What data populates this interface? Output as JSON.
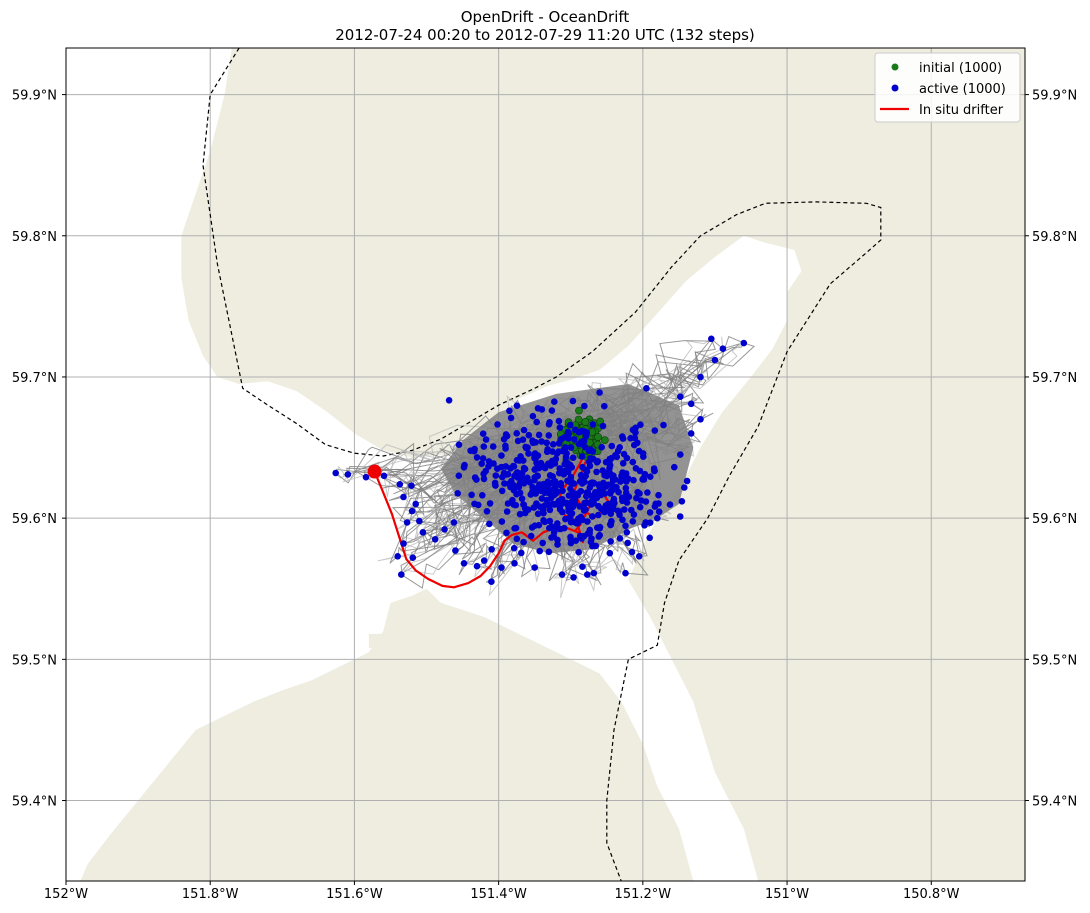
{
  "chart_data": {
    "type": "scatter",
    "title": "OpenDrift - OceanDrift",
    "subtitle": "2012-07-24 00:20 to 2012-07-29 11:20 UTC (132 steps)",
    "projection": "map",
    "xlim": [
      -152.0,
      -150.67
    ],
    "ylim": [
      59.343,
      59.933
    ],
    "grid": true,
    "x_ticks": [
      {
        "value": -152.0,
        "label": "152°W"
      },
      {
        "value": -151.8,
        "label": "151.8°W"
      },
      {
        "value": -151.6,
        "label": "151.6°W"
      },
      {
        "value": -151.4,
        "label": "151.4°W"
      },
      {
        "value": -151.2,
        "label": "151.2°W"
      },
      {
        "value": -151.0,
        "label": "151°W"
      },
      {
        "value": -150.8,
        "label": "150.8°W"
      }
    ],
    "y_ticks": [
      {
        "value": 59.9,
        "label": "59.9°N"
      },
      {
        "value": 59.8,
        "label": "59.8°N"
      },
      {
        "value": 59.7,
        "label": "59.7°N"
      },
      {
        "value": 59.6,
        "label": "59.6°N"
      },
      {
        "value": 59.5,
        "label": "59.5°N"
      },
      {
        "value": 59.4,
        "label": "59.4°N"
      }
    ],
    "legend_position": "top-right",
    "legend": [
      {
        "label": "initial (1000)",
        "marker": "dot",
        "color": "#1a7a1a"
      },
      {
        "label": "active (1000)",
        "marker": "dot",
        "color": "#0000cc"
      },
      {
        "label": "In situ drifter",
        "marker": "line",
        "color": "#ee0000"
      }
    ],
    "colors": {
      "land": "#eeede0",
      "trajectory": "#808080",
      "trajectory_light": "#bdbdbd",
      "initial": "#1a7a1a",
      "active": "#0000cc",
      "drifter": "#ee0000",
      "grid": "#b0b0b0",
      "boundary": "#000000"
    },
    "series": [
      {
        "name": "In situ drifter",
        "type": "line",
        "points": [
          [
            -151.572,
            59.633
          ],
          [
            -151.56,
            59.618
          ],
          [
            -151.548,
            59.603
          ],
          [
            -151.538,
            59.587
          ],
          [
            -151.528,
            59.571
          ],
          [
            -151.515,
            59.563
          ],
          [
            -151.498,
            59.557
          ],
          [
            -151.478,
            59.552
          ],
          [
            -151.462,
            59.551
          ],
          [
            -151.442,
            59.554
          ],
          [
            -151.425,
            59.559
          ],
          [
            -151.412,
            59.566
          ],
          [
            -151.4,
            59.575
          ],
          [
            -151.392,
            59.584
          ],
          [
            -151.382,
            59.588
          ],
          [
            -151.368,
            59.59
          ],
          [
            -151.352,
            59.584
          ],
          [
            -151.338,
            59.59
          ],
          [
            -151.322,
            59.593
          ],
          [
            -151.305,
            59.593
          ],
          [
            -151.29,
            59.59
          ],
          [
            -151.283,
            59.583
          ],
          [
            -151.292,
            59.598
          ],
          [
            -151.308,
            59.602
          ],
          [
            -151.318,
            59.61
          ],
          [
            -151.312,
            59.62
          ],
          [
            -151.298,
            59.629
          ],
          [
            -151.288,
            59.638
          ],
          [
            -151.28,
            59.646
          ],
          [
            -151.274,
            59.656
          ],
          [
            -151.278,
            59.642
          ],
          [
            -151.288,
            59.628
          ],
          [
            -151.296,
            59.618
          ],
          [
            -151.282,
            59.606
          ],
          [
            -151.268,
            59.6
          ],
          [
            -151.258,
            59.604
          ],
          [
            -151.248,
            59.612
          ],
          [
            -151.256,
            59.618
          ],
          [
            -151.272,
            59.61
          ],
          [
            -151.287,
            59.595
          ],
          [
            -151.294,
            59.591
          ]
        ],
        "start_point": [
          -151.572,
          59.633
        ]
      },
      {
        "name": "initial (1000)",
        "type": "scatter",
        "center": [
          -151.283,
          59.657
        ],
        "spread": [
          0.022,
          0.013
        ]
      },
      {
        "name": "active (1000)",
        "type": "scatter",
        "points": [
          [
            -151.626,
            59.632
          ],
          [
            -151.609,
            59.631
          ],
          [
            -151.584,
            59.629
          ],
          [
            -151.559,
            59.63
          ],
          [
            -151.537,
            59.624
          ],
          [
            -151.521,
            59.623
          ],
          [
            -151.532,
            59.615
          ],
          [
            -151.515,
            59.61
          ],
          [
            -151.52,
            59.605
          ],
          [
            -151.51,
            59.598
          ],
          [
            -151.527,
            59.597
          ],
          [
            -151.505,
            59.59
          ],
          [
            -151.532,
            59.582
          ],
          [
            -151.519,
            59.572
          ],
          [
            -151.54,
            59.573
          ],
          [
            -151.535,
            59.56
          ],
          [
            -151.488,
            59.585
          ],
          [
            -151.475,
            59.592
          ],
          [
            -151.462,
            59.597
          ],
          [
            -151.46,
            59.577
          ],
          [
            -151.448,
            59.568
          ],
          [
            -151.43,
            59.566
          ],
          [
            -151.41,
            59.555
          ],
          [
            -151.396,
            59.565
          ],
          [
            -151.378,
            59.568
          ],
          [
            -151.35,
            59.565
          ],
          [
            -151.312,
            59.56
          ],
          [
            -151.296,
            59.558
          ],
          [
            -151.277,
            59.56
          ],
          [
            -151.268,
            59.561
          ],
          [
            -151.224,
            59.561
          ],
          [
            -151.215,
            59.576
          ],
          [
            -151.205,
            59.573
          ],
          [
            -151.196,
            59.597
          ],
          [
            -151.18,
            59.6
          ],
          [
            -151.148,
            59.645
          ],
          [
            -151.133,
            59.66
          ],
          [
            -151.12,
            59.67
          ],
          [
            -151.133,
            59.681
          ],
          [
            -151.148,
            59.686
          ],
          [
            -151.12,
            59.7
          ],
          [
            -151.1,
            59.712
          ],
          [
            -151.089,
            59.72
          ],
          [
            -151.06,
            59.724
          ],
          [
            -151.105,
            59.727
          ],
          [
            -151.195,
            59.692
          ],
          [
            -151.26,
            59.689
          ],
          [
            -151.297,
            59.683
          ],
          [
            -151.34,
            59.677
          ],
          [
            -151.385,
            59.676
          ],
          [
            -151.43,
            59.643
          ],
          [
            -151.448,
            59.636
          ],
          [
            -151.455,
            59.652
          ],
          [
            -151.243,
            59.651
          ],
          [
            -151.21,
            59.664
          ]
        ],
        "note_count": 1000
      }
    ]
  }
}
